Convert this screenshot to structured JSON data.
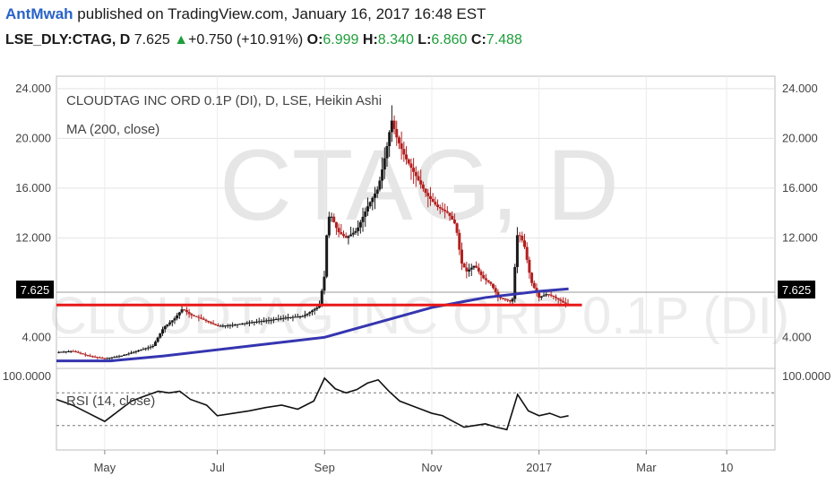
{
  "header": {
    "user": "AntMwah",
    "published": "published on TradingView.com, January 16, 2017 16:48 EST",
    "symbol": "LSE_DLY:CTAG, D",
    "last": "7.625",
    "up_arrow": "▲",
    "change": "+0.750 (+10.91%)",
    "o_label": "O:",
    "o_value": "6.999",
    "h_label": "H:",
    "h_value": "8.340",
    "l_label": "L:",
    "l_value": "6.860",
    "c_label": "C:",
    "c_value": "7.488"
  },
  "watermark": {
    "symbol": "CTAG, D",
    "name": "CLOUDTAG INC ORD 0.1P (DI)"
  },
  "chart_data": [
    {
      "type": "candlestick",
      "title": "CLOUDTAG INC ORD 0.1P (DI), D, LSE, Heikin Ashi",
      "legend": [
        "MA (200, close)"
      ],
      "yticks": [
        "24.000",
        "20.000",
        "16.000",
        "12.000",
        "4.000"
      ],
      "ytick_values": [
        24,
        20,
        16,
        12,
        4
      ],
      "last_price_label": "7.625",
      "last_price": 7.625,
      "ylim": [
        1.5,
        25
      ],
      "xticks": [
        "May",
        "Jul",
        "Sep",
        "Nov",
        "2017",
        "Mar",
        "10"
      ],
      "xtick_values": [
        0.9,
        3.0,
        5.0,
        7.0,
        9.0,
        11.0,
        12.5
      ],
      "xlim": [
        0,
        13.4
      ],
      "support_line": 6.6,
      "colors": {
        "up": "#1a1a1a",
        "down": "#b22020",
        "ma": "#3535b0",
        "support": "#e81818"
      },
      "price": [
        [
          0.0,
          2.8
        ],
        [
          0.3,
          2.9
        ],
        [
          0.6,
          2.5
        ],
        [
          0.9,
          2.3
        ],
        [
          1.2,
          2.5
        ],
        [
          1.5,
          2.9
        ],
        [
          1.8,
          3.3
        ],
        [
          2.0,
          4.8
        ],
        [
          2.2,
          5.5
        ],
        [
          2.35,
          6.3
        ],
        [
          2.5,
          5.8
        ],
        [
          2.7,
          5.5
        ],
        [
          3.0,
          4.9
        ],
        [
          3.3,
          5.0
        ],
        [
          3.6,
          5.2
        ],
        [
          4.0,
          5.4
        ],
        [
          4.3,
          5.6
        ],
        [
          4.6,
          5.7
        ],
        [
          4.9,
          6.5
        ],
        [
          5.0,
          9.0
        ],
        [
          5.05,
          13.0
        ],
        [
          5.1,
          14.0
        ],
        [
          5.25,
          12.5
        ],
        [
          5.4,
          12.0
        ],
        [
          5.6,
          12.6
        ],
        [
          5.8,
          14.5
        ],
        [
          6.0,
          16.0
        ],
        [
          6.15,
          19.0
        ],
        [
          6.25,
          21.5
        ],
        [
          6.35,
          20.0
        ],
        [
          6.5,
          18.5
        ],
        [
          6.7,
          17.0
        ],
        [
          6.9,
          15.5
        ],
        [
          7.1,
          14.5
        ],
        [
          7.3,
          14.0
        ],
        [
          7.45,
          13.0
        ],
        [
          7.55,
          10.0
        ],
        [
          7.65,
          9.3
        ],
        [
          7.8,
          9.8
        ],
        [
          7.95,
          8.8
        ],
        [
          8.1,
          8.3
        ],
        [
          8.25,
          7.2
        ],
        [
          8.4,
          7.0
        ],
        [
          8.5,
          6.8
        ],
        [
          8.6,
          12.5
        ],
        [
          8.72,
          11.5
        ],
        [
          8.85,
          8.5
        ],
        [
          9.0,
          7.2
        ],
        [
          9.15,
          7.5
        ],
        [
          9.3,
          7.2
        ],
        [
          9.45,
          6.8
        ],
        [
          9.55,
          6.6
        ]
      ],
      "ma": [
        [
          0.0,
          2.1
        ],
        [
          1.0,
          2.1
        ],
        [
          2.0,
          2.5
        ],
        [
          3.0,
          3.0
        ],
        [
          4.0,
          3.5
        ],
        [
          5.0,
          4.0
        ],
        [
          6.0,
          5.2
        ],
        [
          7.0,
          6.4
        ],
        [
          8.0,
          7.2
        ],
        [
          9.0,
          7.7
        ],
        [
          9.55,
          7.9
        ]
      ]
    },
    {
      "type": "line",
      "legend": [
        "RSI (14, close)"
      ],
      "yticks": [
        "100.0000"
      ],
      "ylim": [
        0,
        100
      ],
      "levels": [
        70,
        30
      ],
      "x": [
        0.0,
        0.3,
        0.6,
        0.9,
        1.2,
        1.4,
        1.6,
        1.9,
        2.1,
        2.3,
        2.5,
        2.8,
        3.0,
        3.3,
        3.6,
        3.9,
        4.2,
        4.5,
        4.8,
        5.0,
        5.2,
        5.4,
        5.6,
        5.8,
        6.0,
        6.2,
        6.4,
        6.6,
        6.8,
        7.0,
        7.2,
        7.4,
        7.6,
        7.8,
        8.0,
        8.2,
        8.4,
        8.6,
        8.8,
        9.0,
        9.2,
        9.4,
        9.55
      ],
      "y": [
        62,
        55,
        45,
        35,
        50,
        60,
        65,
        72,
        70,
        72,
        62,
        55,
        42,
        45,
        48,
        52,
        55,
        50,
        60,
        88,
        75,
        70,
        74,
        82,
        86,
        72,
        60,
        55,
        50,
        45,
        42,
        35,
        28,
        30,
        32,
        28,
        25,
        68,
        48,
        42,
        45,
        40,
        42
      ]
    }
  ]
}
